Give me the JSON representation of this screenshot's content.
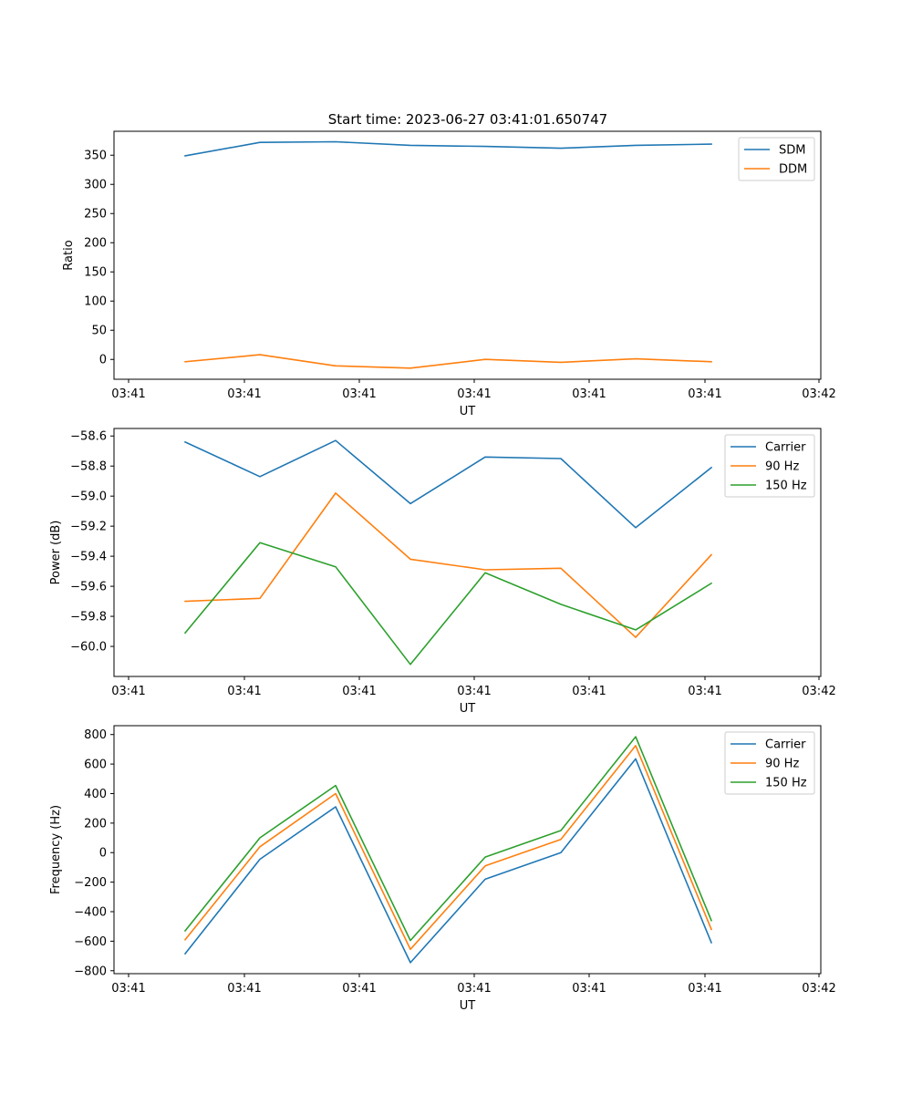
{
  "title": "Start time: 2023-06-27 03:41:01.650747",
  "chart_data": [
    {
      "type": "line",
      "xlabel": "UT",
      "ylabel": "Ratio",
      "x_tick_labels": [
        "03:41",
        "03:41",
        "03:41",
        "03:41",
        "03:41",
        "03:41",
        "03:42"
      ],
      "y_ticks": [
        0,
        50,
        100,
        150,
        200,
        250,
        300,
        350
      ],
      "ylim": [
        -34,
        391
      ],
      "legend": "top-right",
      "grid": false,
      "series": [
        {
          "name": "SDM",
          "color": "#1f77b4",
          "values": [
            349,
            372,
            373,
            367,
            365,
            362,
            367,
            369
          ]
        },
        {
          "name": "DDM",
          "color": "#ff7f0e",
          "values": [
            -4,
            8,
            -11,
            -15,
            0,
            -5,
            1,
            -4
          ]
        }
      ]
    },
    {
      "type": "line",
      "xlabel": "UT",
      "ylabel": "Power (dB)",
      "x_tick_labels": [
        "03:41",
        "03:41",
        "03:41",
        "03:41",
        "03:41",
        "03:41",
        "03:42"
      ],
      "y_ticks": [
        -60.0,
        -59.8,
        -59.6,
        -59.4,
        -59.2,
        -59.0,
        -58.8,
        -58.6
      ],
      "y_tick_labels": [
        "−60.0",
        "−59.8",
        "−59.6",
        "−59.4",
        "−59.2",
        "−59.0",
        "−58.8",
        "−58.6"
      ],
      "ylim": [
        -60.2,
        -58.55
      ],
      "legend": "top-right",
      "grid": false,
      "series": [
        {
          "name": "Carrier",
          "color": "#1f77b4",
          "values": [
            -58.64,
            -58.87,
            -58.63,
            -59.05,
            -58.74,
            -58.75,
            -59.21,
            -58.81
          ]
        },
        {
          "name": "90 Hz",
          "color": "#ff7f0e",
          "values": [
            -59.7,
            -59.68,
            -58.98,
            -59.42,
            -59.49,
            -59.48,
            -59.94,
            -59.39
          ]
        },
        {
          "name": "150 Hz",
          "color": "#2ca02c",
          "values": [
            -59.91,
            -59.31,
            -59.47,
            -60.12,
            -59.51,
            -59.72,
            -59.89,
            -59.58
          ]
        }
      ]
    },
    {
      "type": "line",
      "xlabel": "UT",
      "ylabel": "Frequency (Hz)",
      "x_tick_labels": [
        "03:41",
        "03:41",
        "03:41",
        "03:41",
        "03:41",
        "03:41",
        "03:42"
      ],
      "y_ticks": [
        -800,
        -600,
        -400,
        -200,
        0,
        200,
        400,
        600,
        800
      ],
      "y_tick_labels": [
        "−800",
        "−600",
        "−400",
        "−200",
        "0",
        "200",
        "400",
        "600",
        "800"
      ],
      "ylim": [
        -820,
        860
      ],
      "legend": "top-right",
      "grid": false,
      "series": [
        {
          "name": "Carrier",
          "color": "#1f77b4",
          "values": [
            -685,
            -45,
            310,
            -745,
            -180,
            0,
            635,
            -610
          ]
        },
        {
          "name": "90 Hz",
          "color": "#ff7f0e",
          "values": [
            -590,
            40,
            400,
            -655,
            -90,
            90,
            725,
            -520
          ]
        },
        {
          "name": "150 Hz",
          "color": "#2ca02c",
          "values": [
            -530,
            100,
            455,
            -595,
            -30,
            150,
            785,
            -460
          ]
        }
      ]
    }
  ]
}
